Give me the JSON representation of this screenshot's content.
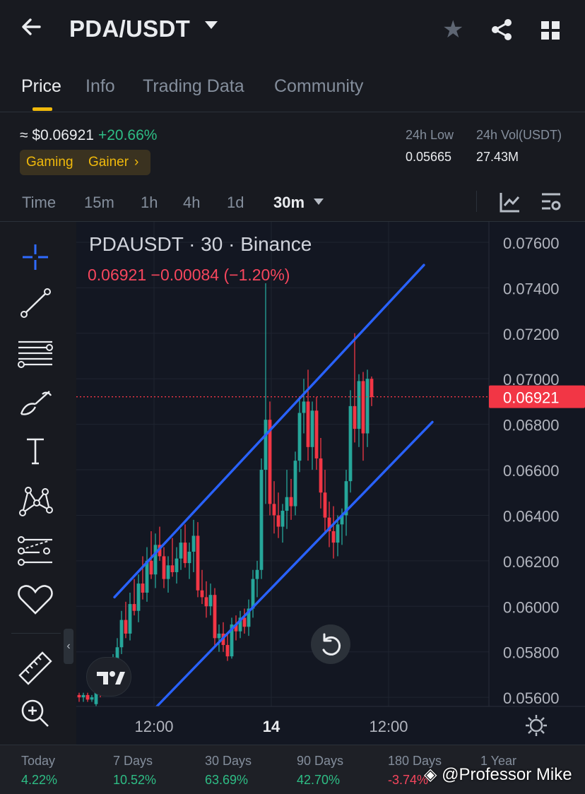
{
  "header": {
    "title": "PDA/USDT"
  },
  "tabs": [
    {
      "label": "Price",
      "active": true
    },
    {
      "label": "Info",
      "active": false
    },
    {
      "label": "Trading Data",
      "active": false
    },
    {
      "label": "Community",
      "active": false
    }
  ],
  "summary": {
    "price_usd": "≈ $0.06921",
    "change": "+20.66%",
    "tags": [
      "Gaming",
      "Gainer"
    ],
    "low_24h_label": "24h Low",
    "low_24h_value": "0.05665",
    "vol_24h_label": "24h Vol(USDT)",
    "vol_24h_value": "27.43M"
  },
  "intervals": {
    "items": [
      "Time",
      "15m",
      "1h",
      "4h",
      "1d"
    ],
    "selected": "30m"
  },
  "tools": [
    "crosshair-icon",
    "trendline-icon",
    "fib-levels-icon",
    "brush-icon",
    "text-icon",
    "pattern-icon",
    "forecast-icon",
    "favorites-heart-icon",
    "ruler-icon",
    "zoom-in-icon"
  ],
  "chart": {
    "title": "PDAUSDT · 30 · Binance",
    "ohlc": "0.06921  −0.00084 (−1.20%)",
    "current_price_label": "0.06921",
    "y_ticks": [
      "0.07600",
      "0.07400",
      "0.07200",
      "0.07000",
      "0.06800",
      "0.06600",
      "0.06400",
      "0.06200",
      "0.06000",
      "0.05800",
      "0.05600"
    ],
    "x_ticks": [
      "12:00",
      "14",
      "12:00"
    ],
    "colors": {
      "up": "#26a69a",
      "down": "#f23645",
      "channel": "#2962ff",
      "bg": "#131722"
    }
  },
  "chart_data": {
    "type": "candlestick",
    "title": "PDAUSDT · 30 · Binance",
    "ylim": [
      0.0556,
      0.0769
    ],
    "y_ticks": [
      0.076,
      0.074,
      0.072,
      0.07,
      0.068,
      0.066,
      0.064,
      0.062,
      0.06,
      0.058,
      0.056
    ],
    "x_ticks": [
      "12:00",
      "14",
      "12:00"
    ],
    "last_price": 0.06921,
    "candles": [
      {
        "o": 0.0561,
        "h": 0.0562,
        "l": 0.0558,
        "c": 0.056
      },
      {
        "o": 0.056,
        "h": 0.0562,
        "l": 0.0558,
        "c": 0.0561
      },
      {
        "o": 0.0561,
        "h": 0.0562,
        "l": 0.0558,
        "c": 0.0559
      },
      {
        "o": 0.0559,
        "h": 0.0561,
        "l": 0.0558,
        "c": 0.056
      },
      {
        "o": 0.0557,
        "h": 0.0566,
        "l": 0.0556,
        "c": 0.0564
      },
      {
        "o": 0.0564,
        "h": 0.0568,
        "l": 0.056,
        "c": 0.0562
      },
      {
        "o": 0.0562,
        "h": 0.057,
        "l": 0.0561,
        "c": 0.0568
      },
      {
        "o": 0.0568,
        "h": 0.0575,
        "l": 0.0564,
        "c": 0.0566
      },
      {
        "o": 0.0566,
        "h": 0.0579,
        "l": 0.0565,
        "c": 0.0577
      },
      {
        "o": 0.0577,
        "h": 0.0586,
        "l": 0.0571,
        "c": 0.0582
      },
      {
        "o": 0.0582,
        "h": 0.0598,
        "l": 0.0579,
        "c": 0.0594
      },
      {
        "o": 0.0594,
        "h": 0.0602,
        "l": 0.0586,
        "c": 0.0588
      },
      {
        "o": 0.0588,
        "h": 0.0606,
        "l": 0.0585,
        "c": 0.0601
      },
      {
        "o": 0.0601,
        "h": 0.0612,
        "l": 0.0596,
        "c": 0.0598
      },
      {
        "o": 0.0598,
        "h": 0.0614,
        "l": 0.0593,
        "c": 0.061
      },
      {
        "o": 0.061,
        "h": 0.0622,
        "l": 0.0603,
        "c": 0.0606
      },
      {
        "o": 0.0606,
        "h": 0.0626,
        "l": 0.0602,
        "c": 0.062
      },
      {
        "o": 0.062,
        "h": 0.0633,
        "l": 0.0612,
        "c": 0.0614
      },
      {
        "o": 0.0614,
        "h": 0.0632,
        "l": 0.0608,
        "c": 0.0627
      },
      {
        "o": 0.0627,
        "h": 0.0635,
        "l": 0.062,
        "c": 0.0622
      },
      {
        "o": 0.0622,
        "h": 0.0626,
        "l": 0.0608,
        "c": 0.0612
      },
      {
        "o": 0.0612,
        "h": 0.0622,
        "l": 0.0606,
        "c": 0.0618
      },
      {
        "o": 0.0618,
        "h": 0.063,
        "l": 0.0613,
        "c": 0.0615
      },
      {
        "o": 0.0615,
        "h": 0.0626,
        "l": 0.061,
        "c": 0.0621
      },
      {
        "o": 0.0621,
        "h": 0.0634,
        "l": 0.0616,
        "c": 0.0628
      },
      {
        "o": 0.0628,
        "h": 0.0636,
        "l": 0.0617,
        "c": 0.0619
      },
      {
        "o": 0.0619,
        "h": 0.0628,
        "l": 0.0612,
        "c": 0.0624
      },
      {
        "o": 0.0624,
        "h": 0.0638,
        "l": 0.0615,
        "c": 0.0631
      },
      {
        "o": 0.0631,
        "h": 0.0637,
        "l": 0.0604,
        "c": 0.0607
      },
      {
        "o": 0.0607,
        "h": 0.0616,
        "l": 0.0601,
        "c": 0.0604
      },
      {
        "o": 0.0604,
        "h": 0.0611,
        "l": 0.0595,
        "c": 0.06
      },
      {
        "o": 0.06,
        "h": 0.061,
        "l": 0.0596,
        "c": 0.0605
      },
      {
        "o": 0.0605,
        "h": 0.0608,
        "l": 0.0582,
        "c": 0.0586
      },
      {
        "o": 0.0586,
        "h": 0.0592,
        "l": 0.058,
        "c": 0.0588
      },
      {
        "o": 0.0588,
        "h": 0.0593,
        "l": 0.058,
        "c": 0.0583
      },
      {
        "o": 0.0583,
        "h": 0.0588,
        "l": 0.0576,
        "c": 0.0578
      },
      {
        "o": 0.0578,
        "h": 0.0595,
        "l": 0.0577,
        "c": 0.0592
      },
      {
        "o": 0.0592,
        "h": 0.0596,
        "l": 0.0585,
        "c": 0.0589
      },
      {
        "o": 0.0589,
        "h": 0.0598,
        "l": 0.0586,
        "c": 0.0595
      },
      {
        "o": 0.0595,
        "h": 0.0599,
        "l": 0.0588,
        "c": 0.0591
      },
      {
        "o": 0.0591,
        "h": 0.0603,
        "l": 0.0587,
        "c": 0.0599
      },
      {
        "o": 0.0599,
        "h": 0.0616,
        "l": 0.0595,
        "c": 0.0612
      },
      {
        "o": 0.0612,
        "h": 0.062,
        "l": 0.0604,
        "c": 0.0616
      },
      {
        "o": 0.0616,
        "h": 0.0665,
        "l": 0.0612,
        "c": 0.066
      },
      {
        "o": 0.066,
        "h": 0.0742,
        "l": 0.0645,
        "c": 0.0682
      },
      {
        "o": 0.0682,
        "h": 0.069,
        "l": 0.064,
        "c": 0.0645
      },
      {
        "o": 0.0645,
        "h": 0.0655,
        "l": 0.0632,
        "c": 0.064
      },
      {
        "o": 0.064,
        "h": 0.065,
        "l": 0.063,
        "c": 0.0635
      },
      {
        "o": 0.0635,
        "h": 0.0645,
        "l": 0.0628,
        "c": 0.0642
      },
      {
        "o": 0.0642,
        "h": 0.066,
        "l": 0.0634,
        "c": 0.0648
      },
      {
        "o": 0.0648,
        "h": 0.0656,
        "l": 0.0638,
        "c": 0.0644
      },
      {
        "o": 0.0644,
        "h": 0.0668,
        "l": 0.064,
        "c": 0.0664
      },
      {
        "o": 0.0664,
        "h": 0.0692,
        "l": 0.0659,
        "c": 0.0685
      },
      {
        "o": 0.0685,
        "h": 0.07,
        "l": 0.0676,
        "c": 0.069
      },
      {
        "o": 0.069,
        "h": 0.0704,
        "l": 0.0664,
        "c": 0.067
      },
      {
        "o": 0.067,
        "h": 0.069,
        "l": 0.066,
        "c": 0.0686
      },
      {
        "o": 0.0686,
        "h": 0.0692,
        "l": 0.066,
        "c": 0.0665
      },
      {
        "o": 0.0665,
        "h": 0.0674,
        "l": 0.0643,
        "c": 0.065
      },
      {
        "o": 0.065,
        "h": 0.066,
        "l": 0.0632,
        "c": 0.0639
      },
      {
        "o": 0.0639,
        "h": 0.0646,
        "l": 0.0626,
        "c": 0.0633
      },
      {
        "o": 0.0633,
        "h": 0.0644,
        "l": 0.0621,
        "c": 0.0628
      },
      {
        "o": 0.0628,
        "h": 0.064,
        "l": 0.0622,
        "c": 0.0636
      },
      {
        "o": 0.0636,
        "h": 0.0643,
        "l": 0.0627,
        "c": 0.064
      },
      {
        "o": 0.064,
        "h": 0.066,
        "l": 0.0631,
        "c": 0.0655
      },
      {
        "o": 0.0655,
        "h": 0.0695,
        "l": 0.065,
        "c": 0.0688
      },
      {
        "o": 0.0688,
        "h": 0.072,
        "l": 0.0672,
        "c": 0.0678
      },
      {
        "o": 0.0678,
        "h": 0.0702,
        "l": 0.067,
        "c": 0.0699
      },
      {
        "o": 0.0699,
        "h": 0.0703,
        "l": 0.0664,
        "c": 0.0676
      },
      {
        "o": 0.0676,
        "h": 0.0704,
        "l": 0.067,
        "c": 0.07
      },
      {
        "o": 0.07,
        "h": 0.0701,
        "l": 0.0688,
        "c": 0.0692
      }
    ],
    "channel": {
      "upper": [
        [
          0,
          0.0604
        ],
        [
          62,
          0.075
        ]
      ],
      "lower": [
        [
          10,
          0.0556
        ],
        [
          64,
          0.0681
        ]
      ]
    }
  },
  "periods": [
    {
      "label": "Today",
      "value": "4.22%",
      "dir": "up"
    },
    {
      "label": "7 Days",
      "value": "10.52%",
      "dir": "up"
    },
    {
      "label": "30 Days",
      "value": "63.69%",
      "dir": "up"
    },
    {
      "label": "90 Days",
      "value": "42.70%",
      "dir": "up"
    },
    {
      "label": "180 Days",
      "value": "-3.74%",
      "dir": "down"
    },
    {
      "label": "1 Year",
      "value": "",
      "dir": "up"
    }
  ],
  "watermark": "@Professor Mike"
}
